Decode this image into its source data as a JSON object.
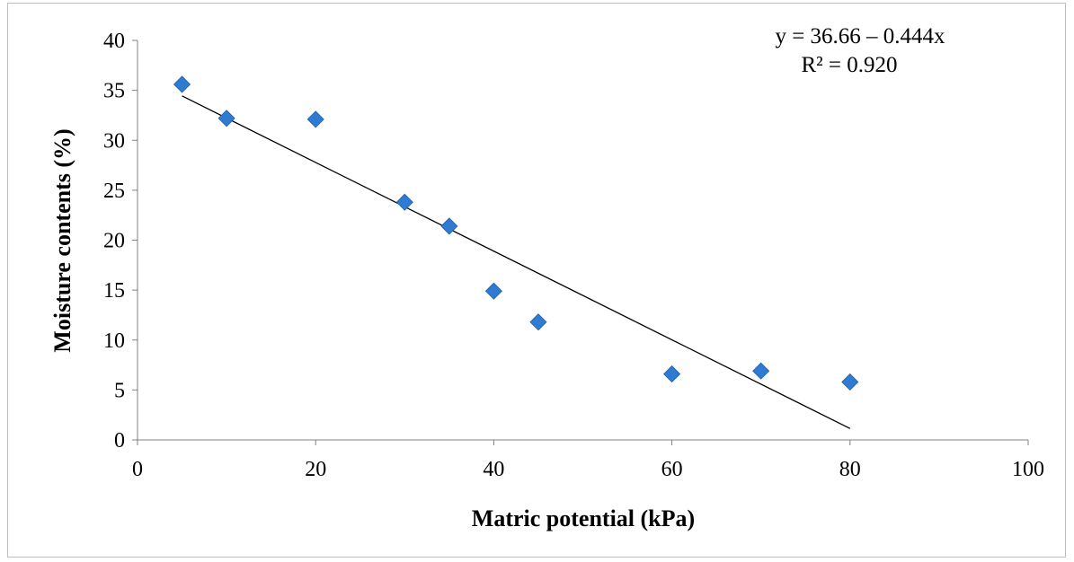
{
  "chart_data": {
    "type": "scatter",
    "xlabel": "Matric potential (kPa)",
    "ylabel": "Moisture contents (%)",
    "xlim": [
      0,
      100
    ],
    "ylim": [
      0,
      40
    ],
    "x_ticks": [
      "0",
      "20",
      "40",
      "60",
      "80",
      "100"
    ],
    "y_ticks": [
      "0",
      "5",
      "10",
      "15",
      "20",
      "25",
      "30",
      "35",
      "40"
    ],
    "grid": false,
    "series": [
      {
        "marker": "diamond",
        "color": "#2f7bd1",
        "x": [
          5,
          10,
          20,
          30,
          35,
          40,
          45,
          60,
          70,
          80
        ],
        "y": [
          35.6,
          32.2,
          32.1,
          23.8,
          21.4,
          14.9,
          11.8,
          6.6,
          6.9,
          5.8
        ]
      }
    ],
    "trendline": {
      "type": "linear",
      "intercept": 36.66,
      "slope": -0.444,
      "x_range": [
        5,
        80
      ],
      "color": "#000000"
    },
    "annotations": {
      "equation": "y = 36.66 – 0.444x",
      "r_squared": "R² = 0.920"
    }
  }
}
